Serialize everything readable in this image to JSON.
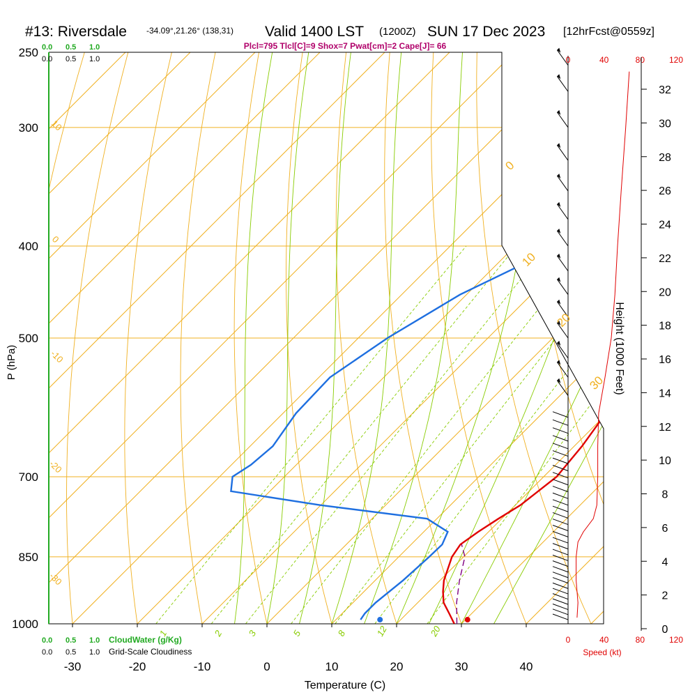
{
  "header": {
    "station": "#13: Riversdale",
    "coords": "-34.09°,21.26° (138,31)",
    "valid": "Valid 1400 LST",
    "utc": "(1200Z)",
    "date": "SUN 17 Dec 2023",
    "forecast": "[12hrFcst@0559z]",
    "indices": "Plcl=795 Tlcl[C]=9 Shox=7 Pwat[cm]=2 Cape[J]= 66"
  },
  "colors": {
    "temperature": "#e00000",
    "dewpoint": "#1e6fe0",
    "parcel": "#800080",
    "isotherm": "#f0b020",
    "dry_adiabat": "#f0b020",
    "moist_adiabat": "#88cc00",
    "mixing_ratio": "#88cc00",
    "cloud_axis": "#22aa22",
    "wind": "#e00000"
  },
  "legend": {
    "cloudwater": "CloudWater (g/Kg)",
    "cloudiness": "Grid-Scale Cloudiness",
    "scale_ticks": [
      "0.0",
      "0.5",
      "1.0"
    ]
  },
  "chart_data": {
    "type": "line",
    "title": "#13: Riversdale",
    "xlabel": "Temperature (C)",
    "ylabel": "P (hPa)",
    "x_ticks": [
      "-30",
      "-20",
      "-10",
      "0",
      "10",
      "20",
      "30",
      "40"
    ],
    "p_ticks": [
      "250",
      "300",
      "400",
      "500",
      "700",
      "850",
      "1000"
    ],
    "xlim": [
      -34,
      46
    ],
    "plim": [
      1000,
      250
    ],
    "series": [
      {
        "role": "temperature",
        "points": [
          {
            "p": 1000,
            "t": 28.9
          },
          {
            "p": 975,
            "t": 26.5
          },
          {
            "p": 950,
            "t": 24.0
          },
          {
            "p": 925,
            "t": 22.2
          },
          {
            "p": 900,
            "t": 20.6
          },
          {
            "p": 850,
            "t": 18.2
          },
          {
            "p": 825,
            "t": 17.6
          },
          {
            "p": 800,
            "t": 18.4
          },
          {
            "p": 775,
            "t": 19.5
          },
          {
            "p": 750,
            "t": 20.8
          },
          {
            "p": 700,
            "t": 22.0
          },
          {
            "p": 650,
            "t": 21.2
          },
          {
            "p": 600,
            "t": 19.8
          },
          {
            "p": 550,
            "t": 18.2
          },
          {
            "p": 500,
            "t": 16.4
          },
          {
            "p": 450,
            "t": 13.6
          },
          {
            "p": 400,
            "t": 10.6
          },
          {
            "p": 350,
            "t": 7.5
          },
          {
            "p": 300,
            "t": 4.2
          },
          {
            "p": 265,
            "t": 1.5
          }
        ]
      },
      {
        "role": "dewpoint",
        "points": [
          {
            "p": 990,
            "t": 13.8
          },
          {
            "p": 975,
            "t": 13.5
          },
          {
            "p": 950,
            "t": 13.5
          },
          {
            "p": 900,
            "t": 14.3
          },
          {
            "p": 850,
            "t": 14.7
          },
          {
            "p": 825,
            "t": 14.8
          },
          {
            "p": 800,
            "t": 13.7
          },
          {
            "p": 775,
            "t": 8.5
          },
          {
            "p": 750,
            "t": -10.0
          },
          {
            "p": 725,
            "t": -26.0
          },
          {
            "p": 700,
            "t": -28.0
          },
          {
            "p": 680,
            "t": -27.0
          },
          {
            "p": 650,
            "t": -26.5
          },
          {
            "p": 600,
            "t": -28.0
          },
          {
            "p": 550,
            "t": -28.3
          },
          {
            "p": 500,
            "t": -25.5
          },
          {
            "p": 450,
            "t": -21.0
          },
          {
            "p": 400,
            "t": -13.0
          },
          {
            "p": 350,
            "t": -5.2
          },
          {
            "p": 320,
            "t": -4.0
          },
          {
            "p": 300,
            "t": -4.5
          },
          {
            "p": 280,
            "t": -7.0
          },
          {
            "p": 265,
            "t": -9.5
          }
        ]
      },
      {
        "role": "parcel",
        "points": [
          {
            "p": 1000,
            "t": 29.3
          },
          {
            "p": 950,
            "t": 26.0
          },
          {
            "p": 900,
            "t": 23.0
          },
          {
            "p": 850,
            "t": 20.2
          },
          {
            "p": 825,
            "t": 17.8
          }
        ]
      }
    ],
    "surface_markers": {
      "temperature": 30.3,
      "dewpoint": 16.8
    },
    "isotherm_labels": [
      "0",
      "10",
      "20",
      "30"
    ],
    "dry_adiabat_labels": [
      "10",
      "0",
      "-10",
      "-20",
      "-30"
    ],
    "mixing_ratio_labels": [
      "1",
      "2",
      "3",
      "5",
      "8",
      "12",
      "20"
    ],
    "right_axis": {
      "label": "Height (1000 Feet)",
      "ticks": [
        "0",
        "2",
        "4",
        "6",
        "8",
        "10",
        "12",
        "14",
        "16",
        "18",
        "20",
        "22",
        "24",
        "26",
        "28",
        "30",
        "32"
      ]
    },
    "wind": {
      "label": "Speed (kt)",
      "scale_ticks": [
        "0",
        "40",
        "80",
        "120"
      ],
      "speed_profile": [
        {
          "p": 985,
          "kt": 10
        },
        {
          "p": 950,
          "kt": 11
        },
        {
          "p": 900,
          "kt": 9
        },
        {
          "p": 850,
          "kt": 9
        },
        {
          "p": 820,
          "kt": 11
        },
        {
          "p": 800,
          "kt": 17
        },
        {
          "p": 775,
          "kt": 28
        },
        {
          "p": 750,
          "kt": 32
        },
        {
          "p": 700,
          "kt": 33
        },
        {
          "p": 650,
          "kt": 33
        },
        {
          "p": 600,
          "kt": 34
        },
        {
          "p": 550,
          "kt": 41
        },
        {
          "p": 500,
          "kt": 48
        },
        {
          "p": 450,
          "kt": 52
        },
        {
          "p": 400,
          "kt": 55
        },
        {
          "p": 350,
          "kt": 59
        },
        {
          "p": 300,
          "kt": 64
        },
        {
          "p": 262,
          "kt": 68
        }
      ]
    }
  }
}
